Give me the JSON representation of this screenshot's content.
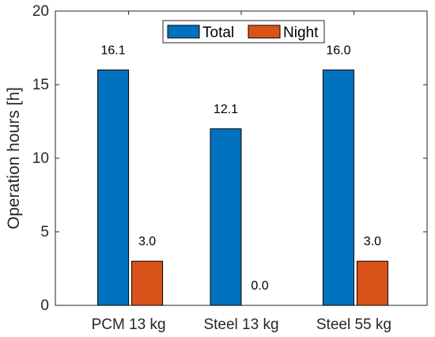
{
  "chart_data": {
    "type": "bar",
    "categories": [
      "PCM 13 kg",
      "Steel 13 kg",
      "Steel 55 kg"
    ],
    "series": [
      {
        "name": "Total",
        "values": [
          16,
          12,
          16
        ],
        "labels": [
          "16.1",
          "12.1",
          "16.0"
        ],
        "color": "#0072BD"
      },
      {
        "name": "Night",
        "values": [
          3,
          0,
          3
        ],
        "labels": [
          "3.0",
          "0.0",
          "3.0"
        ],
        "color": "#D95319"
      }
    ],
    "title": "",
    "xlabel": "",
    "ylabel": "Operation hours [h]",
    "ylim": [
      0,
      20
    ],
    "yticks": [
      "0",
      "5",
      "10",
      "15",
      "20"
    ],
    "grid": false,
    "legend": {
      "position": "top-center",
      "orientation": "horizontal"
    }
  }
}
